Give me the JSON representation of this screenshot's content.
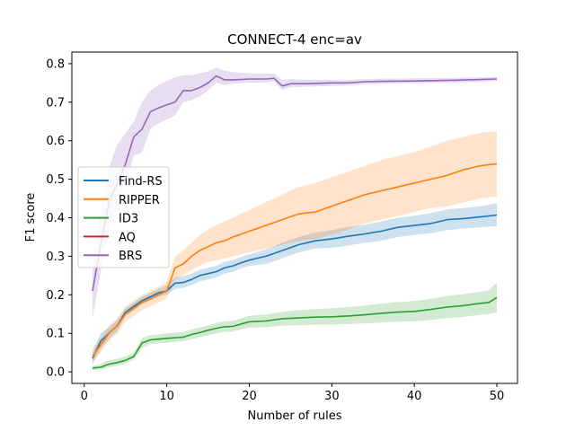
{
  "chart_data": {
    "type": "line",
    "title": "CONNECT-4 enc=av",
    "xlabel": "Number of rules",
    "ylabel": "F1 score",
    "xlim": [
      -1.5,
      52.5
    ],
    "ylim": [
      -0.03,
      0.83
    ],
    "xticks": [
      0,
      10,
      20,
      30,
      40,
      50
    ],
    "yticks": [
      0.0,
      0.1,
      0.2,
      0.3,
      0.4,
      0.5,
      0.6,
      0.7,
      0.8
    ],
    "xtick_labels": [
      "0",
      "10",
      "20",
      "30",
      "40",
      "50"
    ],
    "ytick_labels": [
      "0.0",
      "0.1",
      "0.2",
      "0.3",
      "0.4",
      "0.5",
      "0.6",
      "0.7",
      "0.8"
    ],
    "grid": false,
    "legend_position": "center-left",
    "band": "shaded range around each series",
    "series": [
      {
        "name": "Find-RS",
        "color": "#1f77b4",
        "points": [
          [
            1,
            0.035
          ],
          [
            2,
            0.08
          ],
          [
            3,
            0.1
          ],
          [
            4,
            0.12
          ],
          [
            5,
            0.155
          ],
          [
            6,
            0.17
          ],
          [
            7,
            0.185
          ],
          [
            8,
            0.195
          ],
          [
            9,
            0.205
          ],
          [
            10,
            0.21
          ],
          [
            11,
            0.23
          ],
          [
            12,
            0.232
          ],
          [
            13,
            0.24
          ],
          [
            14,
            0.25
          ],
          [
            15,
            0.255
          ],
          [
            16,
            0.26
          ],
          [
            17,
            0.27
          ],
          [
            18,
            0.275
          ],
          [
            19,
            0.283
          ],
          [
            20,
            0.29
          ],
          [
            22,
            0.3
          ],
          [
            24,
            0.315
          ],
          [
            26,
            0.33
          ],
          [
            28,
            0.34
          ],
          [
            30,
            0.345
          ],
          [
            32,
            0.352
          ],
          [
            34,
            0.358
          ],
          [
            36,
            0.365
          ],
          [
            38,
            0.375
          ],
          [
            40,
            0.38
          ],
          [
            42,
            0.385
          ],
          [
            44,
            0.395
          ],
          [
            46,
            0.398
          ],
          [
            48,
            0.402
          ],
          [
            50,
            0.407
          ]
        ],
        "band_points": [
          [
            1,
            0.02,
            0.05
          ],
          [
            2,
            0.06,
            0.1
          ],
          [
            3,
            0.085,
            0.115
          ],
          [
            4,
            0.105,
            0.135
          ],
          [
            5,
            0.145,
            0.165
          ],
          [
            6,
            0.16,
            0.18
          ],
          [
            7,
            0.175,
            0.195
          ],
          [
            8,
            0.185,
            0.205
          ],
          [
            9,
            0.195,
            0.215
          ],
          [
            10,
            0.2,
            0.225
          ],
          [
            11,
            0.215,
            0.245
          ],
          [
            12,
            0.218,
            0.248
          ],
          [
            13,
            0.225,
            0.255
          ],
          [
            14,
            0.235,
            0.265
          ],
          [
            15,
            0.24,
            0.27
          ],
          [
            16,
            0.245,
            0.275
          ],
          [
            17,
            0.255,
            0.285
          ],
          [
            18,
            0.26,
            0.29
          ],
          [
            19,
            0.268,
            0.298
          ],
          [
            20,
            0.275,
            0.305
          ],
          [
            22,
            0.28,
            0.318
          ],
          [
            24,
            0.295,
            0.335
          ],
          [
            26,
            0.31,
            0.35
          ],
          [
            28,
            0.32,
            0.362
          ],
          [
            30,
            0.322,
            0.368
          ],
          [
            32,
            0.328,
            0.376
          ],
          [
            34,
            0.335,
            0.382
          ],
          [
            36,
            0.34,
            0.39
          ],
          [
            38,
            0.35,
            0.4
          ],
          [
            40,
            0.355,
            0.405
          ],
          [
            42,
            0.36,
            0.412
          ],
          [
            44,
            0.368,
            0.422
          ],
          [
            46,
            0.372,
            0.425
          ],
          [
            48,
            0.375,
            0.43
          ],
          [
            50,
            0.378,
            0.438
          ]
        ]
      },
      {
        "name": "RIPPER",
        "color": "#ff7f0e",
        "points": [
          [
            1,
            0.04
          ],
          [
            2,
            0.07
          ],
          [
            3,
            0.1
          ],
          [
            4,
            0.12
          ],
          [
            5,
            0.15
          ],
          [
            6,
            0.165
          ],
          [
            7,
            0.18
          ],
          [
            8,
            0.19
          ],
          [
            9,
            0.2
          ],
          [
            10,
            0.21
          ],
          [
            11,
            0.27
          ],
          [
            12,
            0.28
          ],
          [
            13,
            0.3
          ],
          [
            14,
            0.315
          ],
          [
            15,
            0.325
          ],
          [
            16,
            0.335
          ],
          [
            17,
            0.34
          ],
          [
            18,
            0.35
          ],
          [
            20,
            0.365
          ],
          [
            22,
            0.38
          ],
          [
            24,
            0.395
          ],
          [
            26,
            0.41
          ],
          [
            28,
            0.415
          ],
          [
            30,
            0.43
          ],
          [
            32,
            0.445
          ],
          [
            34,
            0.46
          ],
          [
            36,
            0.47
          ],
          [
            38,
            0.48
          ],
          [
            40,
            0.49
          ],
          [
            42,
            0.5
          ],
          [
            44,
            0.51
          ],
          [
            46,
            0.525
          ],
          [
            48,
            0.535
          ],
          [
            50,
            0.54
          ]
        ],
        "band_points": [
          [
            1,
            0.025,
            0.06
          ],
          [
            2,
            0.05,
            0.09
          ],
          [
            3,
            0.08,
            0.12
          ],
          [
            4,
            0.1,
            0.14
          ],
          [
            5,
            0.13,
            0.17
          ],
          [
            6,
            0.145,
            0.185
          ],
          [
            7,
            0.16,
            0.2
          ],
          [
            8,
            0.17,
            0.21
          ],
          [
            9,
            0.18,
            0.22
          ],
          [
            10,
            0.19,
            0.235
          ],
          [
            11,
            0.24,
            0.3
          ],
          [
            12,
            0.25,
            0.315
          ],
          [
            13,
            0.265,
            0.335
          ],
          [
            14,
            0.275,
            0.355
          ],
          [
            15,
            0.285,
            0.37
          ],
          [
            16,
            0.29,
            0.38
          ],
          [
            17,
            0.295,
            0.39
          ],
          [
            18,
            0.3,
            0.4
          ],
          [
            20,
            0.31,
            0.42
          ],
          [
            22,
            0.32,
            0.44
          ],
          [
            24,
            0.33,
            0.46
          ],
          [
            26,
            0.34,
            0.48
          ],
          [
            28,
            0.345,
            0.49
          ],
          [
            30,
            0.355,
            0.505
          ],
          [
            32,
            0.37,
            0.52
          ],
          [
            34,
            0.385,
            0.535
          ],
          [
            36,
            0.395,
            0.55
          ],
          [
            38,
            0.405,
            0.56
          ],
          [
            40,
            0.415,
            0.57
          ],
          [
            42,
            0.425,
            0.585
          ],
          [
            44,
            0.43,
            0.6
          ],
          [
            46,
            0.44,
            0.61
          ],
          [
            48,
            0.45,
            0.62
          ],
          [
            50,
            0.455,
            0.625
          ]
        ]
      },
      {
        "name": "ID3",
        "color": "#2ca02c",
        "points": [
          [
            1,
            0.01
          ],
          [
            2,
            0.012
          ],
          [
            3,
            0.02
          ],
          [
            4,
            0.024
          ],
          [
            5,
            0.03
          ],
          [
            6,
            0.04
          ],
          [
            7,
            0.075
          ],
          [
            8,
            0.083
          ],
          [
            9,
            0.085
          ],
          [
            10,
            0.087
          ],
          [
            12,
            0.09
          ],
          [
            13,
            0.097
          ],
          [
            14,
            0.102
          ],
          [
            15,
            0.108
          ],
          [
            16,
            0.113
          ],
          [
            17,
            0.117
          ],
          [
            18,
            0.118
          ],
          [
            20,
            0.13
          ],
          [
            22,
            0.132
          ],
          [
            24,
            0.138
          ],
          [
            26,
            0.14
          ],
          [
            28,
            0.142
          ],
          [
            30,
            0.143
          ],
          [
            32,
            0.145
          ],
          [
            34,
            0.148
          ],
          [
            36,
            0.152
          ],
          [
            38,
            0.155
          ],
          [
            40,
            0.157
          ],
          [
            42,
            0.162
          ],
          [
            44,
            0.168
          ],
          [
            46,
            0.172
          ],
          [
            48,
            0.178
          ],
          [
            49,
            0.18
          ],
          [
            50,
            0.193
          ]
        ],
        "band_points": [
          [
            1,
            0.005,
            0.015
          ],
          [
            2,
            0.006,
            0.02
          ],
          [
            3,
            0.012,
            0.03
          ],
          [
            4,
            0.015,
            0.034
          ],
          [
            5,
            0.022,
            0.04
          ],
          [
            6,
            0.032,
            0.05
          ],
          [
            7,
            0.062,
            0.088
          ],
          [
            8,
            0.072,
            0.095
          ],
          [
            9,
            0.074,
            0.097
          ],
          [
            10,
            0.076,
            0.1
          ],
          [
            12,
            0.079,
            0.103
          ],
          [
            13,
            0.085,
            0.11
          ],
          [
            14,
            0.09,
            0.115
          ],
          [
            15,
            0.095,
            0.12
          ],
          [
            16,
            0.1,
            0.127
          ],
          [
            17,
            0.104,
            0.131
          ],
          [
            18,
            0.105,
            0.133
          ],
          [
            20,
            0.115,
            0.145
          ],
          [
            22,
            0.116,
            0.149
          ],
          [
            24,
            0.12,
            0.156
          ],
          [
            26,
            0.121,
            0.16
          ],
          [
            28,
            0.122,
            0.163
          ],
          [
            30,
            0.123,
            0.165
          ],
          [
            32,
            0.124,
            0.168
          ],
          [
            34,
            0.126,
            0.172
          ],
          [
            36,
            0.128,
            0.177
          ],
          [
            38,
            0.13,
            0.181
          ],
          [
            40,
            0.131,
            0.184
          ],
          [
            42,
            0.135,
            0.19
          ],
          [
            44,
            0.14,
            0.197
          ],
          [
            46,
            0.143,
            0.202
          ],
          [
            48,
            0.148,
            0.208
          ],
          [
            49,
            0.15,
            0.212
          ],
          [
            50,
            0.155,
            0.232
          ]
        ]
      },
      {
        "name": "AQ",
        "color": "#d62728",
        "points": [],
        "band_points": []
      },
      {
        "name": "BRS",
        "color": "#9467bd",
        "points": [
          [
            1,
            0.21
          ],
          [
            2,
            0.33
          ],
          [
            3,
            0.44
          ],
          [
            4,
            0.49
          ],
          [
            5,
            0.54
          ],
          [
            6,
            0.61
          ],
          [
            7,
            0.63
          ],
          [
            8,
            0.675
          ],
          [
            9,
            0.685
          ],
          [
            10,
            0.693
          ],
          [
            11,
            0.7
          ],
          [
            12,
            0.73
          ],
          [
            13,
            0.73
          ],
          [
            14,
            0.738
          ],
          [
            15,
            0.75
          ],
          [
            16,
            0.768
          ],
          [
            17,
            0.758
          ],
          [
            18,
            0.758
          ],
          [
            20,
            0.76
          ],
          [
            22,
            0.76
          ],
          [
            23,
            0.762
          ],
          [
            24,
            0.742
          ],
          [
            25,
            0.748
          ],
          [
            27,
            0.748
          ],
          [
            30,
            0.75
          ],
          [
            32,
            0.75
          ],
          [
            34,
            0.753
          ],
          [
            36,
            0.754
          ],
          [
            40,
            0.755
          ],
          [
            45,
            0.757
          ],
          [
            50,
            0.76
          ]
        ],
        "band_points": [
          [
            1,
            0.14,
            0.28
          ],
          [
            2,
            0.26,
            0.42
          ],
          [
            3,
            0.37,
            0.53
          ],
          [
            4,
            0.43,
            0.59
          ],
          [
            5,
            0.49,
            0.62
          ],
          [
            6,
            0.56,
            0.65
          ],
          [
            7,
            0.57,
            0.7
          ],
          [
            8,
            0.63,
            0.73
          ],
          [
            9,
            0.645,
            0.745
          ],
          [
            10,
            0.655,
            0.755
          ],
          [
            11,
            0.665,
            0.765
          ],
          [
            12,
            0.7,
            0.77
          ],
          [
            13,
            0.705,
            0.77
          ],
          [
            14,
            0.715,
            0.775
          ],
          [
            15,
            0.73,
            0.78
          ],
          [
            16,
            0.75,
            0.79
          ],
          [
            17,
            0.745,
            0.782
          ],
          [
            18,
            0.748,
            0.778
          ],
          [
            20,
            0.75,
            0.775
          ],
          [
            22,
            0.751,
            0.774
          ],
          [
            23,
            0.753,
            0.774
          ],
          [
            24,
            0.732,
            0.757
          ],
          [
            25,
            0.739,
            0.76
          ],
          [
            27,
            0.74,
            0.758
          ],
          [
            30,
            0.742,
            0.758
          ],
          [
            32,
            0.743,
            0.758
          ],
          [
            34,
            0.746,
            0.76
          ],
          [
            36,
            0.748,
            0.761
          ],
          [
            40,
            0.749,
            0.762
          ],
          [
            45,
            0.751,
            0.763
          ],
          [
            50,
            0.754,
            0.766
          ]
        ]
      }
    ]
  }
}
